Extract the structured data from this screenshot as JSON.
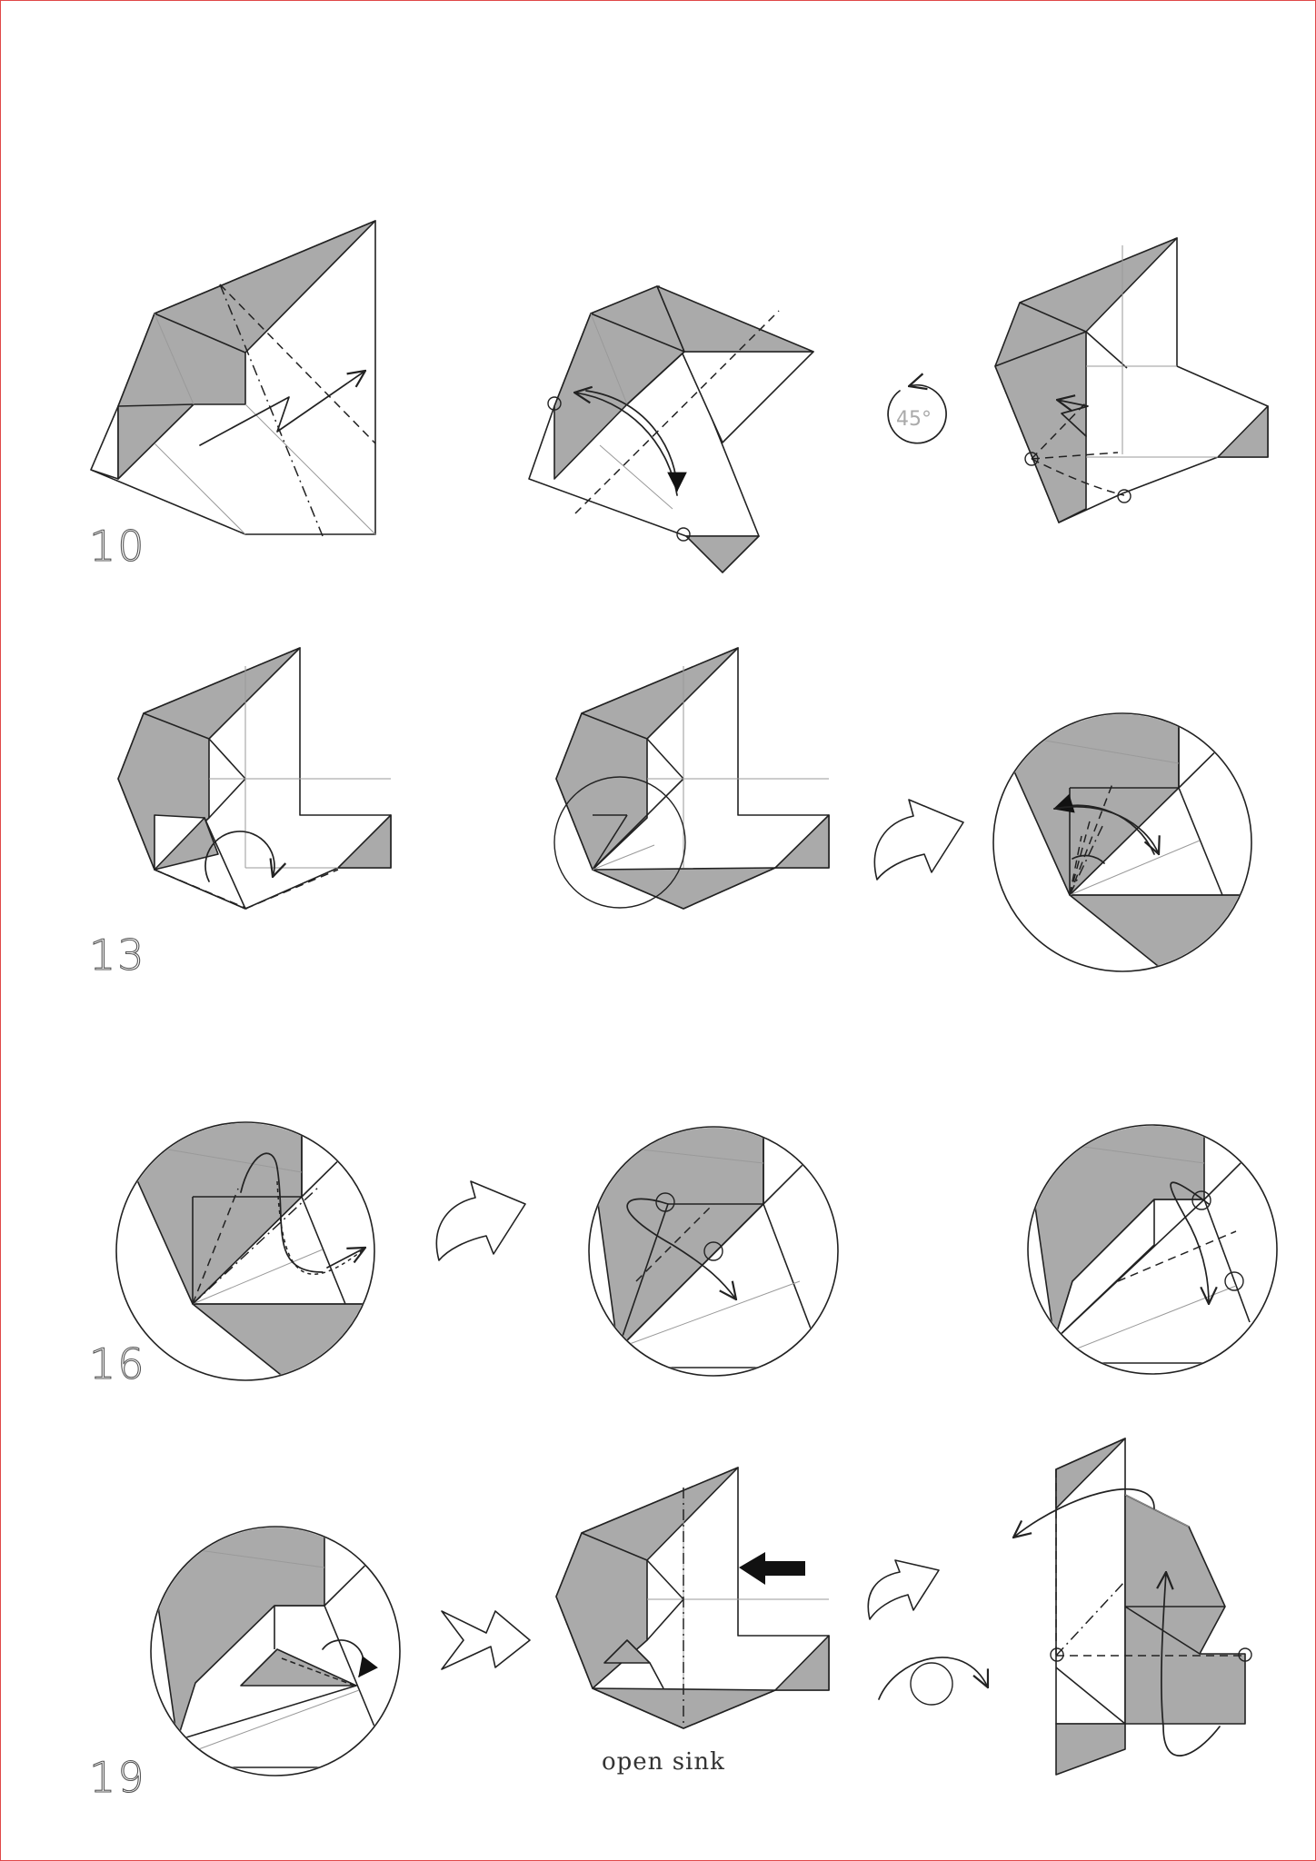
{
  "steps": [
    {
      "id": "10",
      "label": "10"
    },
    {
      "id": "13",
      "label": "13"
    },
    {
      "id": "16",
      "label": "16"
    },
    {
      "id": "19",
      "label": "19"
    }
  ],
  "rotation": {
    "label": "45°"
  },
  "captions": {
    "open_sink": "open sink"
  },
  "colors": {
    "paper_back": "#aaaaaa",
    "paper_front": "#ffffff",
    "line": "#222222",
    "frame": "#e04848"
  },
  "symbols": [
    "valley-fold-line",
    "mountain-fold-line",
    "fold-arrow",
    "push-arrow",
    "turn-over-icon",
    "rotate-icon",
    "reference-point"
  ]
}
